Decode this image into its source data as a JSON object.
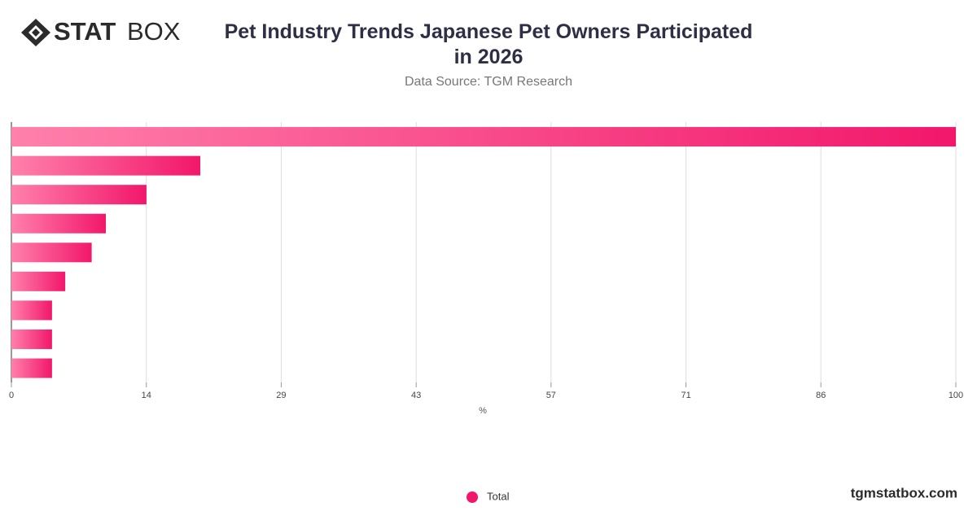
{
  "logo": {
    "strong": "STAT",
    "light": "BOX"
  },
  "footer": "tgmstatbox.com",
  "chart_data": {
    "type": "bar",
    "orientation": "horizontal",
    "title": "Pet Industry Trends Japanese Pet Owners Participated in 2026",
    "subtitle": "Data Source: TGM Research",
    "x_label": "%",
    "categories": [
      null,
      null,
      null,
      null,
      null,
      null,
      null,
      null,
      null
    ],
    "series": [
      {
        "name": "Total",
        "color": "#f2176b",
        "values": [
          100,
          20,
          14.3,
          10,
          8.5,
          5.7,
          4.3,
          4.3,
          4.3
        ]
      }
    ],
    "xlim": [
      0,
      100
    ],
    "xticks": [
      0,
      {
        "value": 14.29,
        "label": "14"
      },
      {
        "value": 28.57,
        "label": "29"
      },
      {
        "value": 42.86,
        "label": "43"
      },
      {
        "value": 57.14,
        "label": "57"
      },
      {
        "value": 71.43,
        "label": "71"
      },
      {
        "value": 85.71,
        "label": "86"
      },
      100
    ],
    "grid": true,
    "legend": "bottom"
  }
}
